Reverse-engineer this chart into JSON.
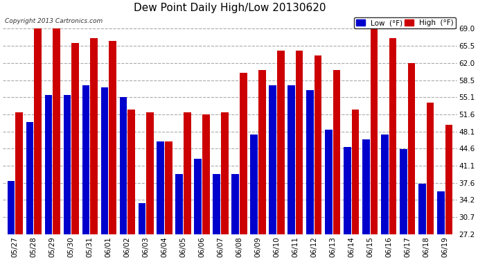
{
  "title": "Dew Point Daily High/Low 20130620",
  "copyright": "Copyright 2013 Cartronics.com",
  "categories": [
    "05/27",
    "05/28",
    "05/29",
    "05/30",
    "05/31",
    "06/01",
    "06/02",
    "06/03",
    "06/04",
    "06/05",
    "06/06",
    "06/07",
    "06/08",
    "06/09",
    "06/10",
    "06/11",
    "06/12",
    "06/13",
    "06/14",
    "06/15",
    "06/16",
    "06/17",
    "06/18",
    "06/19"
  ],
  "low_values": [
    38.0,
    50.0,
    55.5,
    55.5,
    57.5,
    57.0,
    55.0,
    33.5,
    46.0,
    39.5,
    42.5,
    39.5,
    39.5,
    47.5,
    57.5,
    57.5,
    56.5,
    48.5,
    45.0,
    46.5,
    47.5,
    44.5,
    37.5,
    36.0
  ],
  "high_values": [
    52.0,
    69.0,
    69.0,
    66.0,
    67.0,
    66.5,
    52.5,
    52.0,
    46.0,
    52.0,
    51.5,
    52.0,
    60.0,
    60.5,
    64.5,
    64.5,
    63.5,
    60.5,
    52.5,
    69.0,
    67.0,
    62.0,
    54.0,
    49.5
  ],
  "low_color": "#0000cc",
  "high_color": "#cc0000",
  "bg_color": "#ffffff",
  "plot_bg_color": "#ffffff",
  "grid_color": "#aaaaaa",
  "yticks": [
    27.2,
    30.7,
    34.2,
    37.6,
    41.1,
    44.6,
    48.1,
    51.6,
    55.1,
    58.5,
    62.0,
    65.5,
    69.0
  ],
  "ylim_min": 27.2,
  "ylim_max": 71.5,
  "title_fontsize": 11,
  "tick_fontsize": 7.5,
  "legend_low_label": "Low  (°F)",
  "legend_high_label": "High  (°F)"
}
